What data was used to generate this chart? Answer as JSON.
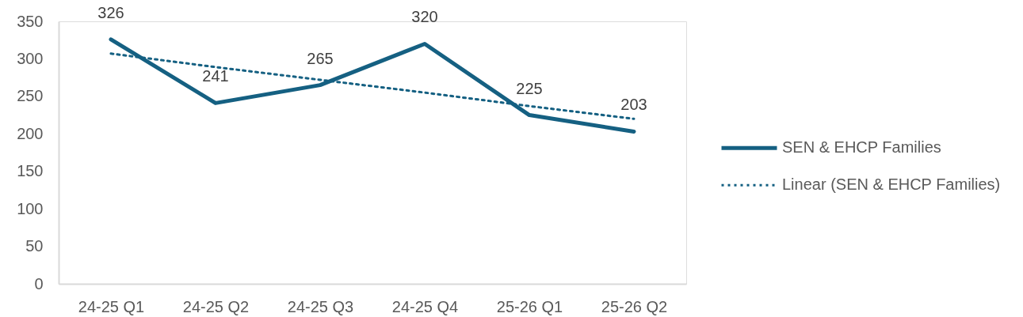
{
  "chart_data": {
    "type": "line",
    "categories": [
      "24-25 Q1",
      "24-25 Q2",
      "24-25 Q3",
      "24-25 Q4",
      "25-26 Q1",
      "25-26 Q2"
    ],
    "series": [
      {
        "name": "SEN & EHCP Families",
        "color": "#156082",
        "line_style": "solid",
        "values": [
          326,
          241,
          265,
          320,
          225,
          203
        ],
        "value_labels": [
          "326",
          "241",
          "265",
          "320",
          "225",
          "203"
        ]
      },
      {
        "name": "Linear (SEN & EHCP Families)",
        "color": "#156082",
        "line_style": "dotted",
        "values": [
          307,
          289,
          272,
          255,
          237,
          220
        ]
      }
    ],
    "ylim": [
      0,
      350
    ],
    "yticks": [
      0,
      50,
      100,
      150,
      200,
      250,
      300,
      350
    ],
    "grid": false,
    "legend": "right",
    "marker": "none"
  }
}
